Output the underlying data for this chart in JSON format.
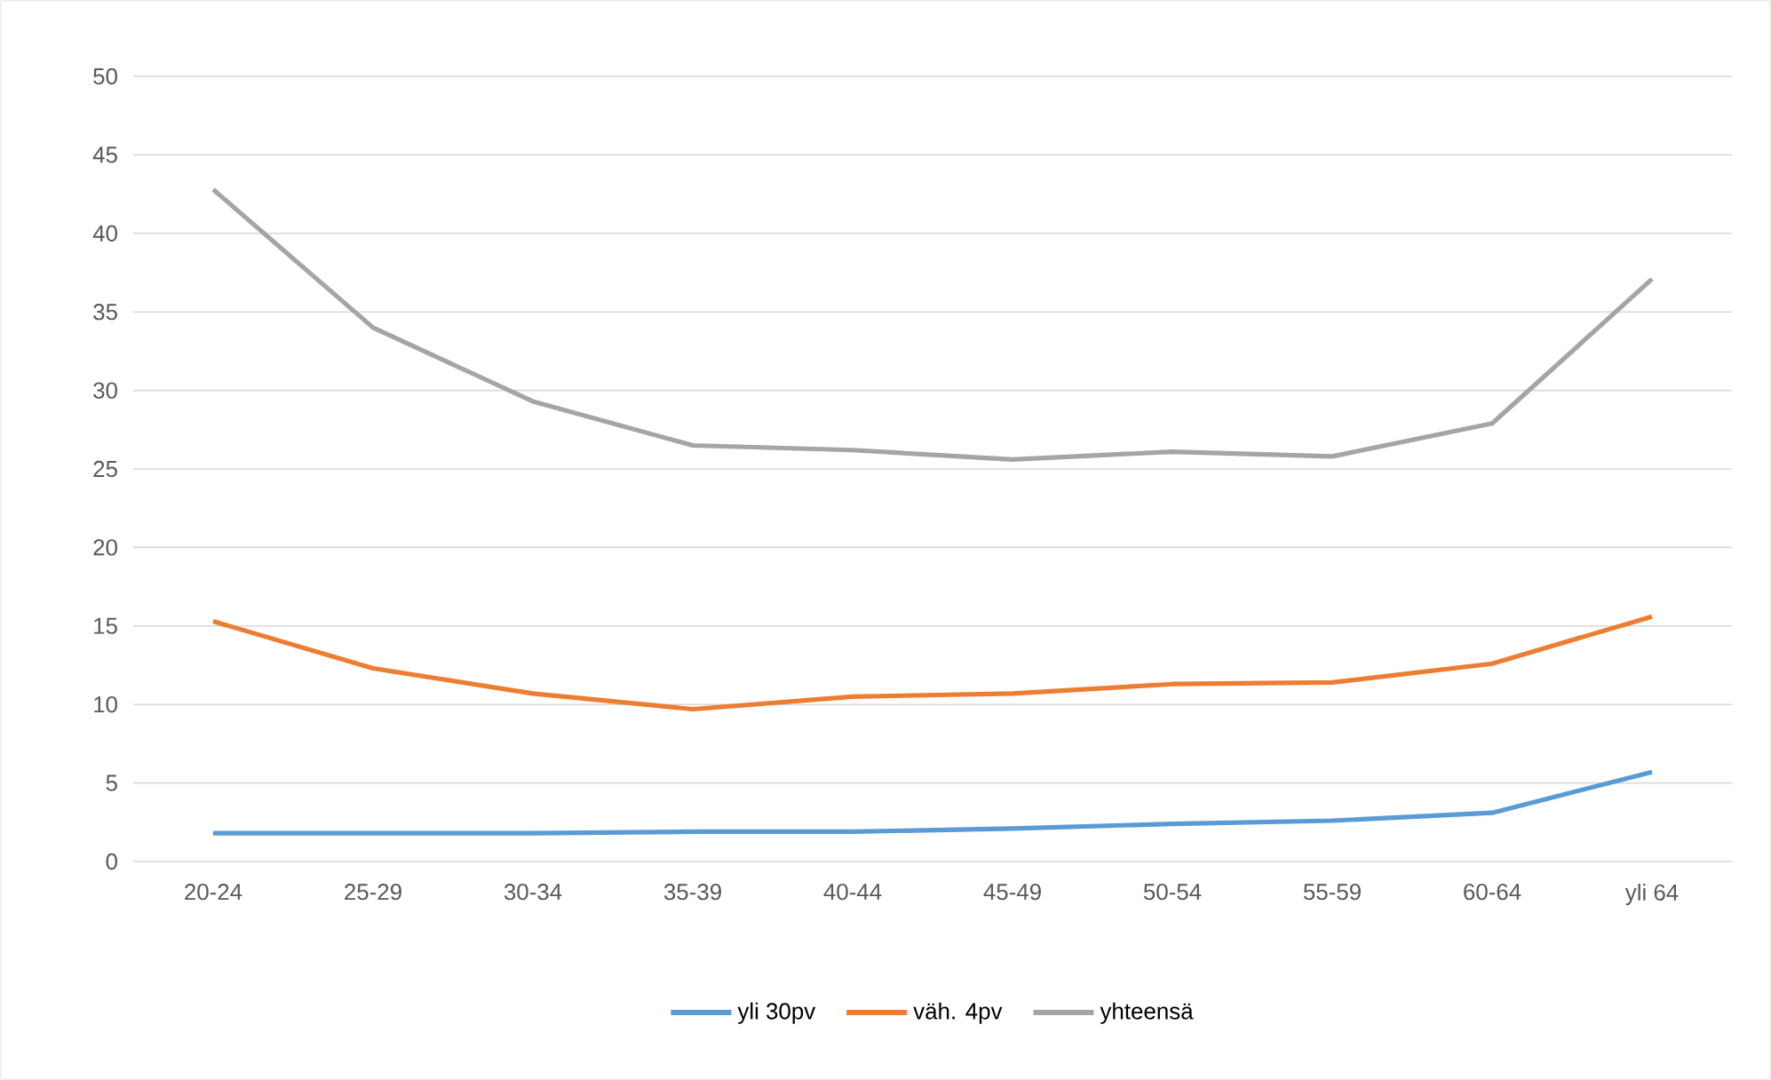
{
  "chart_data": {
    "type": "line",
    "categories": [
      "20-24",
      "25-29",
      "30-34",
      "35-39",
      "40-44",
      "45-49",
      "50-54",
      "55-59",
      "60-64",
      "yli 64"
    ],
    "series": [
      {
        "name": "yli 30pv",
        "color": "#5b9bd5",
        "values": [
          1.8,
          1.8,
          1.8,
          1.9,
          1.9,
          2.1,
          2.4,
          2.6,
          3.1,
          5.7
        ]
      },
      {
        "name": "väh. 4pv",
        "color": "#ed7d31",
        "values": [
          15.3,
          12.3,
          10.7,
          9.7,
          10.5,
          10.7,
          11.3,
          11.4,
          12.6,
          15.6
        ]
      },
      {
        "name": "yhteensä",
        "color": "#a5a5a5",
        "values": [
          42.8,
          34.0,
          29.3,
          26.5,
          26.2,
          25.6,
          26.1,
          25.8,
          27.9,
          37.1
        ]
      }
    ],
    "ylim": [
      0,
      50
    ],
    "yticks": [
      0,
      5,
      10,
      15,
      20,
      25,
      30,
      35,
      40,
      45,
      50
    ],
    "grid": "y",
    "legend": "bottom",
    "marker": "none",
    "line_style": "solid"
  }
}
